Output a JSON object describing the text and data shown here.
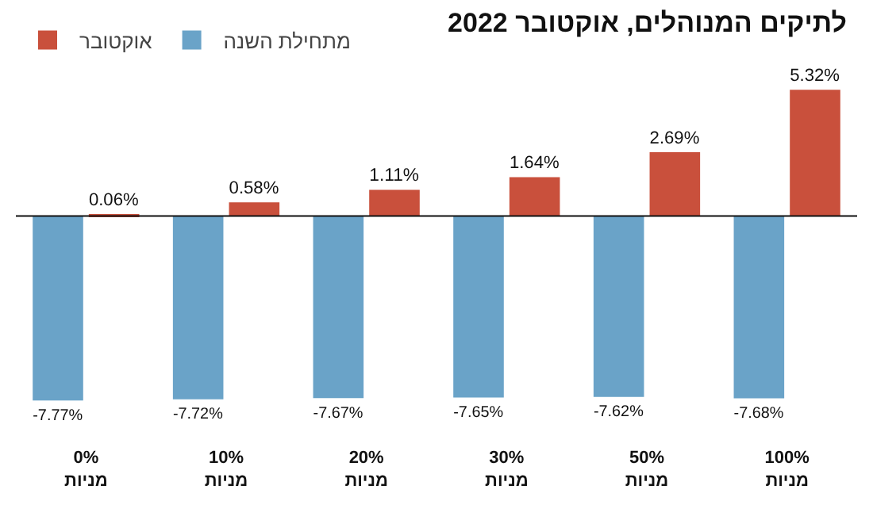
{
  "chart_data": {
    "type": "bar",
    "title": "לתיקים המנוהלים, אוקטובר 2022",
    "categories": [
      "0%\nמניות",
      "10%\nמניות",
      "20%\nמניות",
      "30%\nמניות",
      "50%\nמניות",
      "100%\nמניות"
    ],
    "series": [
      {
        "name": "אוקטובר",
        "color": "#c9503c",
        "values": [
          0.06,
          0.58,
          1.11,
          1.64,
          2.69,
          5.32
        ],
        "value_labels": [
          "0.06%",
          "0.58%",
          "1.11%",
          "1.64%",
          "2.69%",
          "5.32%"
        ]
      },
      {
        "name": "מתחילת השנה",
        "color": "#6aa3c8",
        "values": [
          -7.77,
          -7.72,
          -7.67,
          -7.65,
          -7.62,
          -7.68
        ],
        "value_labels": [
          "-7.77%",
          "-7.72%",
          "-7.67%",
          "-7.65%",
          "-7.62%",
          "-7.68%"
        ]
      }
    ],
    "legend": "top left"
  }
}
